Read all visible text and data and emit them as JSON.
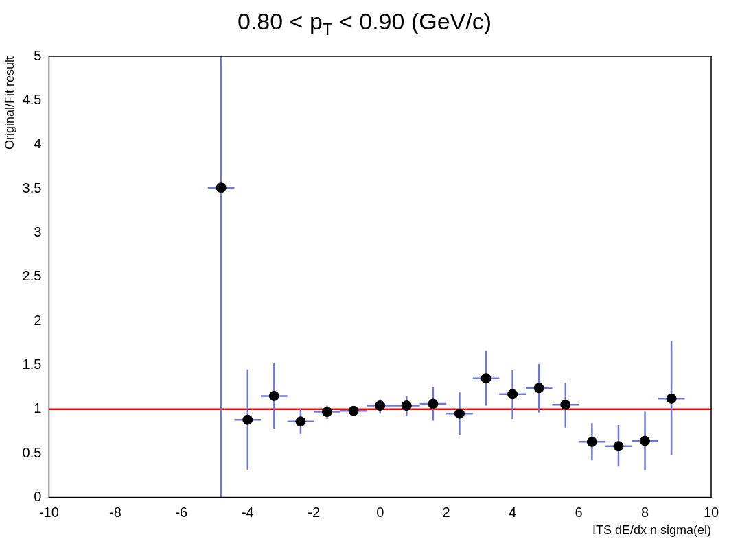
{
  "chart_data": {
    "type": "scatter",
    "title": "0.80 < p$_{T}$ < 0.90 (GeV/c)",
    "xlabel": "ITS dE/dx n sigma(el)",
    "ylabel": "Original/Fit result",
    "x": [
      -4.8,
      -4.0,
      -3.2,
      -2.4,
      -1.6,
      -0.8,
      0.0,
      0.8,
      1.6,
      2.4,
      3.2,
      4.0,
      4.8,
      5.6,
      6.4,
      7.2,
      8.0,
      8.8
    ],
    "series": [
      {
        "color": "#000000",
        "values": [
          3.51,
          0.88,
          1.15,
          0.86,
          0.97,
          0.98,
          1.04,
          1.04,
          1.06,
          0.95,
          1.35,
          1.17,
          1.24,
          1.05,
          0.63,
          0.58,
          0.64,
          1.12
        ],
        "errors": [
          [
            0,
            5
          ],
          [
            0.31,
            1.45
          ],
          [
            0.78,
            1.52
          ],
          [
            0.72,
            1.0
          ],
          [
            0.89,
            1.04
          ],
          null,
          [
            0.95,
            1.11
          ],
          [
            0.92,
            1.15
          ],
          [
            0.87,
            1.25
          ],
          [
            0.71,
            1.19
          ],
          [
            1.04,
            1.66
          ],
          [
            0.89,
            1.44
          ],
          [
            0.96,
            1.51
          ],
          [
            0.79,
            1.3
          ],
          [
            0.42,
            0.84
          ],
          [
            0.35,
            0.82
          ],
          [
            0.31,
            0.97
          ],
          [
            0.48,
            1.77
          ]
        ],
        "xerrors": [
          0.4,
          0.4,
          0.4,
          0.4,
          0.4,
          0.4,
          0.4,
          0.4,
          0.4,
          0.4,
          0.4,
          0.4,
          0.4,
          0.4,
          0.4,
          0.4,
          0.4,
          0.4
        ]
      }
    ],
    "xlim": [
      -10,
      10
    ],
    "xticks": [
      -10,
      -8,
      -6,
      -4,
      -2,
      0,
      2,
      4,
      6,
      8,
      10
    ],
    "ylim": [
      0,
      5
    ],
    "yticks": [
      0,
      0.5,
      1,
      1.5,
      2,
      2.5,
      3,
      3.5,
      4,
      4.5,
      5
    ],
    "ref_lines": [
      {
        "axis": "y",
        "value": 1,
        "color": "#ff0000"
      }
    ],
    "grid": false,
    "legend": false,
    "marker": "circle"
  }
}
